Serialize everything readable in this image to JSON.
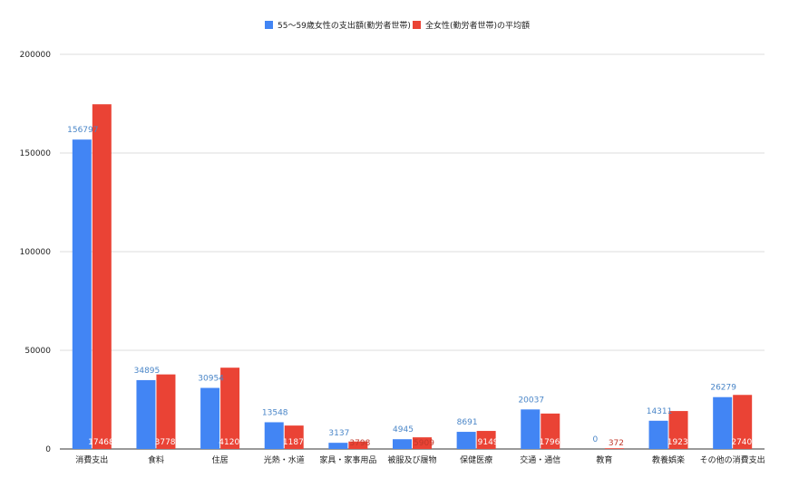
{
  "chart_data": {
    "type": "bar",
    "title": "",
    "xlabel": "",
    "ylabel": "",
    "ylim": [
      0,
      200000
    ],
    "yticks": [
      0,
      50000,
      100000,
      150000,
      200000
    ],
    "ytick_labels": [
      "0",
      "50000",
      "100000",
      "150000",
      "200000"
    ],
    "grid": true,
    "legend_position": "top-center",
    "categories": [
      "消費支出",
      "食料",
      "住居",
      "光熱・水道",
      "家具・家事用品",
      "被服及び履物",
      "保健医療",
      "交通・通信",
      "教育",
      "教養娯楽",
      "その他の消費支出"
    ],
    "series": [
      {
        "name": "55～59歳女性の支出額(勤労者世帯)",
        "color": "#4285f4",
        "values": [
          156797,
          34895,
          30954,
          13548,
          3137,
          4945,
          8691,
          20037,
          0,
          14311,
          26279
        ],
        "labels": [
          "156797",
          "34895",
          "30954",
          "13548",
          "3137",
          "4945",
          "8691",
          "20037",
          "0",
          "14311",
          "26279"
        ]
      },
      {
        "name": "全女性(勤労者世帯)の平均額",
        "color": "#ea4335",
        "values": [
          174681,
          37785,
          41200,
          11875,
          3798,
          5909,
          9149,
          17961,
          372,
          19230,
          27402
        ],
        "labels": [
          "174681",
          "37785",
          "41200",
          "11875",
          "3798",
          "5909",
          "9149",
          "17961",
          "372",
          "19230",
          "27402"
        ]
      }
    ]
  }
}
